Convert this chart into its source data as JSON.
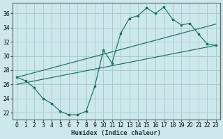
{
  "xlabel": "Humidex (Indice chaleur)",
  "bg_color": "#cce8ec",
  "grid_color": "#aacccc",
  "line_color": "#1a7060",
  "xlim": [
    -0.5,
    23.5
  ],
  "ylim": [
    21.0,
    37.5
  ],
  "xticks": [
    0,
    1,
    2,
    3,
    4,
    5,
    6,
    7,
    8,
    9,
    10,
    11,
    12,
    13,
    14,
    15,
    16,
    17,
    18,
    19,
    20,
    21,
    22,
    23
  ],
  "yticks": [
    22,
    24,
    26,
    28,
    30,
    32,
    34,
    36
  ],
  "curve_x": [
    0,
    1,
    2,
    3,
    4,
    5,
    6,
    7,
    8,
    9,
    10,
    11,
    12,
    13,
    14,
    15,
    16,
    17,
    18,
    19,
    20,
    21,
    22,
    23
  ],
  "curve_y": [
    27.0,
    26.5,
    25.5,
    24.0,
    23.3,
    22.2,
    21.7,
    21.7,
    22.2,
    25.7,
    30.8,
    29.0,
    33.2,
    35.3,
    35.7,
    36.8,
    36.0,
    36.9,
    35.2,
    34.4,
    34.6,
    33.1,
    31.7,
    31.5
  ],
  "line2_x": [
    0,
    23
  ],
  "line2_y": [
    27.0,
    34.5
  ],
  "line3_x": [
    0,
    23
  ],
  "line3_y": [
    26.0,
    31.5
  ],
  "tick_fontsize": 5.5,
  "xlabel_fontsize": 6.5
}
